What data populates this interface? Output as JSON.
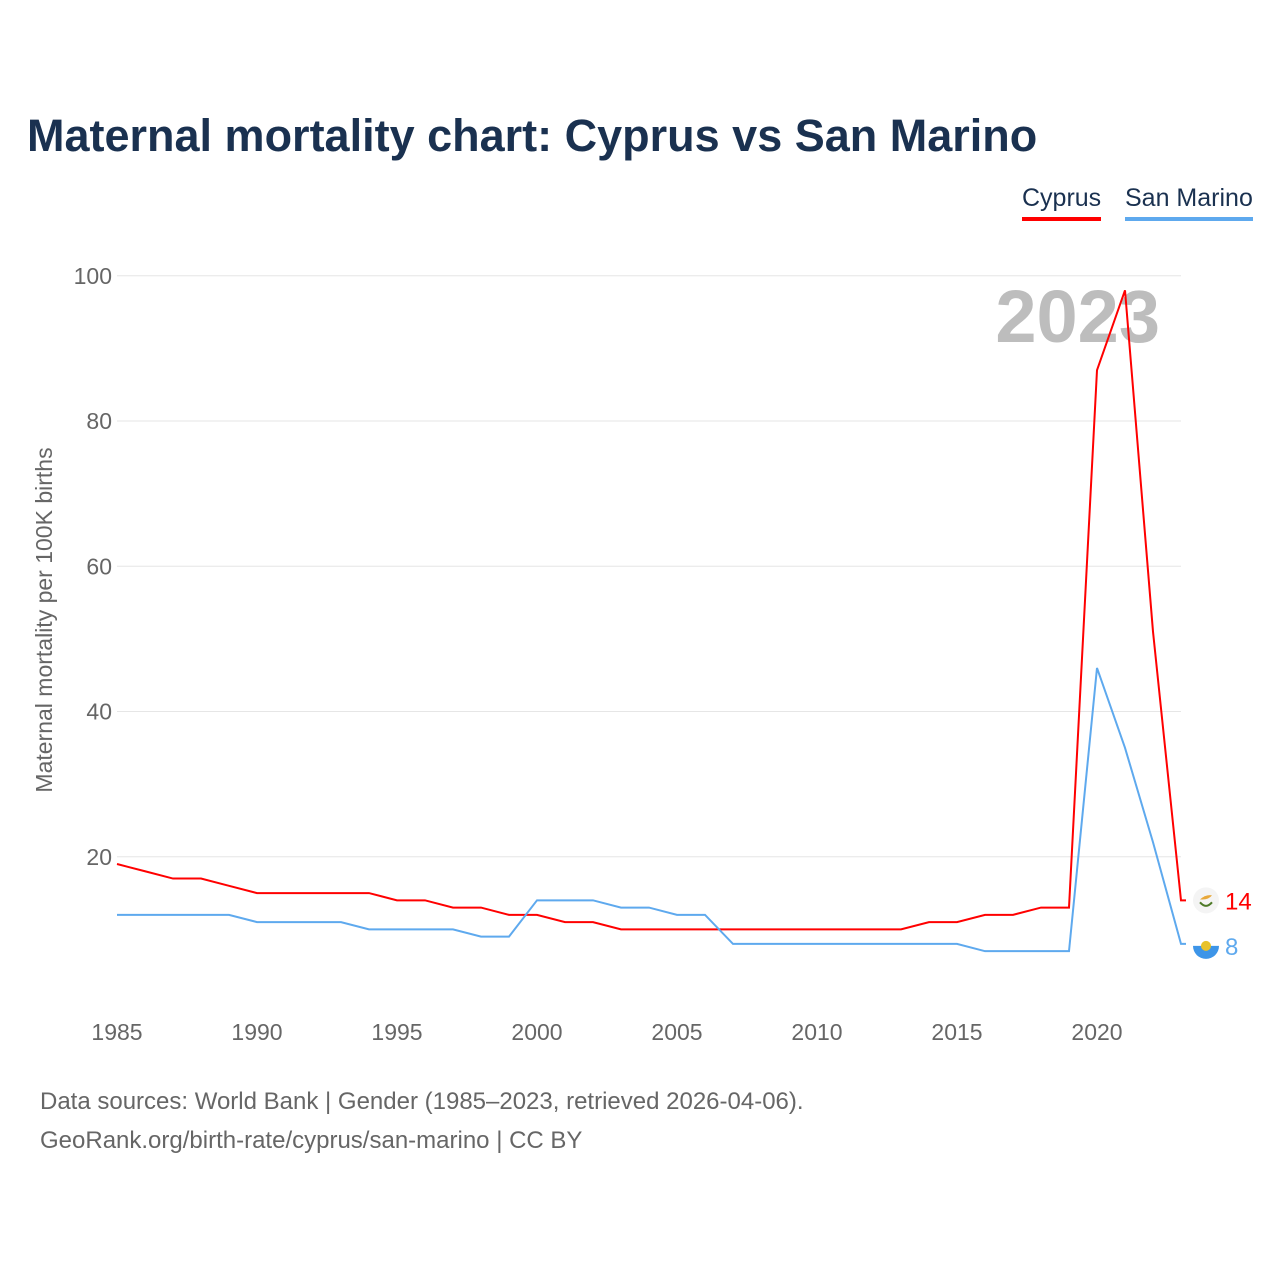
{
  "chart_data": {
    "type": "line",
    "title": "Maternal mortality chart: Cyprus vs San Marino",
    "ylabel": "Maternal mortality per 100K births",
    "xlabel": "",
    "ylim": [
      0,
      100
    ],
    "xlim": [
      1985,
      2023
    ],
    "yticks": [
      20,
      40,
      60,
      80,
      100
    ],
    "xticks": [
      1985,
      1990,
      1995,
      2000,
      2005,
      2010,
      2015,
      2020
    ],
    "grid": true,
    "legend_position": "top-right",
    "year_watermark": "2023",
    "x": [
      1985,
      1986,
      1987,
      1988,
      1989,
      1990,
      1991,
      1992,
      1993,
      1994,
      1995,
      1996,
      1997,
      1998,
      1999,
      2000,
      2001,
      2002,
      2003,
      2004,
      2005,
      2006,
      2007,
      2008,
      2009,
      2010,
      2011,
      2012,
      2013,
      2014,
      2015,
      2016,
      2017,
      2018,
      2019,
      2020,
      2021,
      2022,
      2023
    ],
    "series": [
      {
        "name": "Cyprus",
        "color": "#ff0000",
        "end_label": "14",
        "values": [
          19,
          18,
          17,
          17,
          16,
          15,
          15,
          15,
          15,
          15,
          14,
          14,
          13,
          13,
          12,
          12,
          11,
          11,
          10,
          10,
          10,
          10,
          10,
          10,
          10,
          10,
          10,
          10,
          10,
          11,
          11,
          12,
          12,
          13,
          13,
          87,
          98,
          51,
          14
        ]
      },
      {
        "name": "San Marino",
        "color": "#5ea9ee",
        "end_label": "8",
        "values": [
          12,
          12,
          12,
          12,
          12,
          11,
          11,
          11,
          11,
          10,
          10,
          10,
          10,
          9,
          9,
          14,
          14,
          14,
          13,
          13,
          12,
          12,
          8,
          8,
          8,
          8,
          8,
          8,
          8,
          8,
          8,
          7,
          7,
          7,
          7,
          46,
          35,
          22,
          8
        ]
      }
    ]
  },
  "footer": {
    "line1": "Data sources: World Bank | Gender (1985–2023, retrieved 2026-04-06).",
    "line2": "GeoRank.org/birth-rate/cyprus/san-marino | CC BY"
  }
}
